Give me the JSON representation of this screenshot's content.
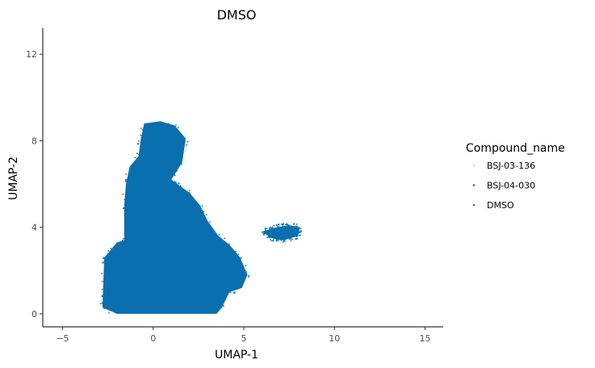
{
  "chart_data": {
    "type": "scatter",
    "title": "DMSO",
    "xlabel": "UMAP-1",
    "ylabel": "UMAP-2",
    "xlim": [
      -6,
      16
    ],
    "ylim": [
      -0.6,
      13.2
    ],
    "x_ticks": [
      -5,
      0,
      5,
      10,
      15
    ],
    "x_tick_labels": [
      "−5",
      "0",
      "5",
      "10",
      "15"
    ],
    "y_ticks": [
      0,
      4,
      8,
      12
    ],
    "y_tick_labels": [
      "0",
      "4",
      "8",
      "12"
    ],
    "grid": false,
    "legend": {
      "title": "Compound_name",
      "position": "right",
      "entries": [
        {
          "label": "BSJ-03-136",
          "color": "#c8c8c8"
        },
        {
          "label": "BSJ-04-030",
          "color": "#c0004a"
        },
        {
          "label": "DMSO",
          "color": "#0a6fae"
        }
      ]
    },
    "series": [
      {
        "name": "DMSO",
        "color": "#0a6fae",
        "clusters": [
          {
            "region": "main-body",
            "outline": [
              [
                -2.8,
                0.3
              ],
              [
                -2.7,
                2.6
              ],
              [
                -2.0,
                3.3
              ],
              [
                -1.6,
                3.4
              ],
              [
                -1.6,
                5.0
              ],
              [
                -1.5,
                6.0
              ],
              [
                -1.3,
                6.8
              ],
              [
                -0.8,
                7.3
              ],
              [
                -0.7,
                8.0
              ],
              [
                -0.5,
                8.8
              ],
              [
                0.4,
                8.9
              ],
              [
                1.2,
                8.7
              ],
              [
                1.8,
                8.1
              ],
              [
                1.6,
                7.0
              ],
              [
                1.0,
                6.2
              ],
              [
                2.0,
                5.6
              ],
              [
                2.6,
                5.0
              ],
              [
                3.0,
                4.3
              ],
              [
                3.6,
                3.6
              ],
              [
                4.2,
                3.2
              ],
              [
                4.8,
                2.6
              ],
              [
                5.2,
                1.8
              ],
              [
                4.9,
                1.2
              ],
              [
                4.2,
                1.0
              ],
              [
                3.8,
                0.3
              ],
              [
                3.5,
                0.0
              ],
              [
                2.5,
                0.0
              ],
              [
                -2.0,
                0.0
              ]
            ]
          },
          {
            "region": "right-satellite",
            "outline": [
              [
                6.0,
                3.8
              ],
              [
                6.8,
                4.0
              ],
              [
                7.5,
                4.1
              ],
              [
                8.1,
                4.0
              ],
              [
                8.0,
                3.6
              ],
              [
                7.2,
                3.4
              ],
              [
                6.5,
                3.5
              ]
            ]
          }
        ]
      },
      {
        "name": "BSJ-03-136",
        "color": "#c8c8c8",
        "clusters": []
      },
      {
        "name": "BSJ-04-030",
        "color": "#c0004a",
        "clusters": []
      }
    ]
  }
}
